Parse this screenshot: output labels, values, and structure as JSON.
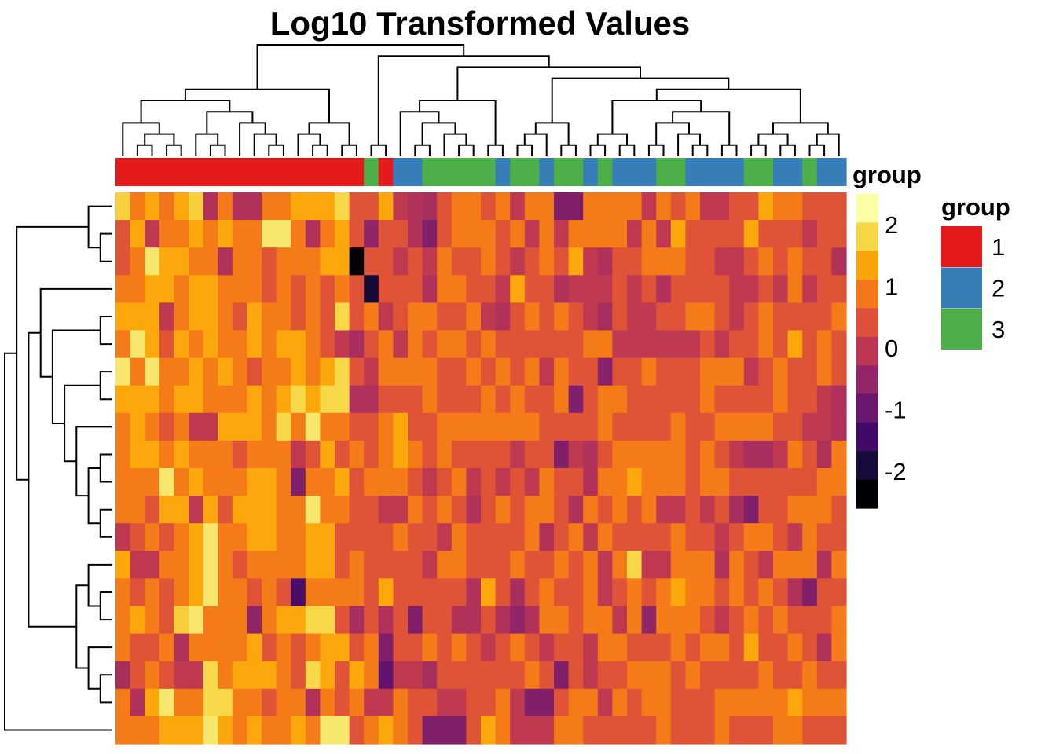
{
  "chart_data": {
    "type": "heatmap",
    "title": "Log10 Transformed Values",
    "n_rows": 20,
    "n_cols": 50,
    "column_groups": [
      1,
      1,
      1,
      1,
      1,
      1,
      1,
      1,
      1,
      1,
      1,
      1,
      1,
      1,
      1,
      1,
      1,
      3,
      1,
      2,
      2,
      3,
      3,
      3,
      3,
      3,
      2,
      3,
      3,
      2,
      3,
      3,
      2,
      3,
      2,
      2,
      2,
      3,
      3,
      2,
      2,
      2,
      2,
      3,
      3,
      2,
      2,
      3,
      2,
      2
    ],
    "annotation": {
      "name": "group",
      "levels": [
        {
          "label": "1",
          "color": "#E41A1C"
        },
        {
          "label": "2",
          "color": "#377EB8"
        },
        {
          "label": "3",
          "color": "#4DAF4A"
        }
      ]
    },
    "colorbar": {
      "name": "group",
      "ticks": [
        "2",
        "1",
        "0",
        "-1",
        "-2"
      ],
      "tick_values": [
        2,
        1,
        0,
        -1,
        -2
      ],
      "min": -2.6,
      "max": 2.5,
      "palette": [
        "#000004",
        "#160B39",
        "#420A68",
        "#6A176E",
        "#932667",
        "#BC3754",
        "#DD513A",
        "#F37819",
        "#FCA50A",
        "#F6D746",
        "#FCFFA4"
      ]
    },
    "values": [
      [
        1.9,
        1.0,
        1.5,
        0.9,
        1.5,
        1.9,
        -0.2,
        1.0,
        -0.2,
        -0.2,
        1.0,
        1.0,
        1.5,
        1.5,
        1.5,
        2.0,
        0.5,
        0.5,
        1.5,
        0.0,
        -0.2,
        -0.3,
        0.5,
        1.0,
        1.0,
        0.5,
        1.0,
        0.0,
        1.0,
        1.0,
        -0.8,
        -0.8,
        1.0,
        1.0,
        1.0,
        1.0,
        0.0,
        1.0,
        0.5,
        1.0,
        0.0,
        0.0,
        0.5,
        0.5,
        1.5,
        1.0,
        1.0,
        0.5,
        0.5,
        0.5
      ],
      [
        0.5,
        1.5,
        0.0,
        1.0,
        1.0,
        1.5,
        1.0,
        1.5,
        1.0,
        1.0,
        2.2,
        2.2,
        1.0,
        -0.2,
        1.0,
        1.5,
        0.5,
        -0.6,
        0.5,
        0.5,
        -0.2,
        -0.8,
        0.5,
        1.0,
        1.0,
        1.0,
        0.5,
        1.0,
        0.0,
        1.0,
        0.0,
        1.0,
        1.0,
        1.0,
        1.0,
        0.0,
        1.0,
        0.0,
        1.5,
        0.5,
        0.5,
        0.5,
        0.5,
        1.5,
        0.5,
        0.5,
        0.5,
        0.0,
        0.5,
        0.5
      ],
      [
        0.5,
        1.0,
        2.2,
        1.5,
        1.5,
        1.0,
        1.0,
        -0.2,
        1.0,
        1.0,
        0.5,
        1.0,
        1.0,
        1.0,
        1.5,
        1.5,
        -2.6,
        0.5,
        0.5,
        0.0,
        0.5,
        0.0,
        1.0,
        0.5,
        0.5,
        1.0,
        0.5,
        0.0,
        0.5,
        1.0,
        0.5,
        1.5,
        0.0,
        -0.2,
        0.5,
        0.5,
        1.0,
        1.0,
        1.0,
        0.5,
        0.5,
        0.0,
        0.0,
        0.5,
        1.0,
        0.5,
        1.0,
        0.5,
        0.5,
        -0.2
      ],
      [
        1.0,
        1.0,
        1.5,
        1.5,
        1.0,
        1.5,
        1.5,
        1.0,
        1.0,
        1.0,
        0.5,
        1.0,
        0.5,
        1.0,
        0.5,
        1.0,
        0.5,
        -2.1,
        0.5,
        0.5,
        0.5,
        -0.2,
        1.0,
        1.0,
        0.5,
        0.5,
        0.0,
        1.5,
        0.5,
        0.5,
        -0.2,
        0.0,
        0.0,
        0.0,
        0.5,
        0.0,
        0.5,
        -0.2,
        0.5,
        0.5,
        0.5,
        0.5,
        0.0,
        0.0,
        0.5,
        0.0,
        1.0,
        0.0,
        0.5,
        0.5
      ],
      [
        1.5,
        1.5,
        1.5,
        0.0,
        1.0,
        1.5,
        1.5,
        1.0,
        0.5,
        1.5,
        1.0,
        1.0,
        0.5,
        1.0,
        0.5,
        2.0,
        0.5,
        1.0,
        0.0,
        0.5,
        1.0,
        1.0,
        0.5,
        0.5,
        1.0,
        0.0,
        -0.2,
        0.5,
        1.0,
        0.5,
        1.0,
        0.5,
        0.0,
        -0.3,
        0.5,
        0.0,
        0.0,
        0.5,
        0.5,
        1.0,
        1.0,
        0.5,
        0.0,
        0.5,
        1.0,
        0.5,
        0.5,
        0.5,
        0.5,
        1.0
      ],
      [
        1.0,
        2.2,
        1.5,
        0.5,
        1.5,
        1.0,
        1.5,
        1.0,
        1.0,
        1.5,
        1.0,
        1.5,
        1.5,
        1.0,
        0.5,
        0.0,
        -0.3,
        0.5,
        1.0,
        0.0,
        1.0,
        0.5,
        1.0,
        1.0,
        0.5,
        1.0,
        0.5,
        0.5,
        0.5,
        0.5,
        0.5,
        0.5,
        1.0,
        1.0,
        0.0,
        0.0,
        0.0,
        0.0,
        0.0,
        0.0,
        0.5,
        0.0,
        0.5,
        0.5,
        1.0,
        0.5,
        1.5,
        0.5,
        1.0,
        0.5
      ],
      [
        2.2,
        1.0,
        2.2,
        1.0,
        1.0,
        1.5,
        1.0,
        1.5,
        1.0,
        0.5,
        1.0,
        1.0,
        1.5,
        1.0,
        1.5,
        2.0,
        0.5,
        0.0,
        1.0,
        1.0,
        1.0,
        1.0,
        0.5,
        0.5,
        1.0,
        0.5,
        1.0,
        0.5,
        1.0,
        0.0,
        1.0,
        0.5,
        0.5,
        -0.7,
        0.5,
        0.5,
        1.0,
        0.5,
        0.5,
        0.5,
        1.0,
        1.0,
        1.0,
        0.0,
        0.5,
        1.0,
        0.5,
        0.5,
        1.0,
        0.5
      ],
      [
        1.5,
        1.5,
        1.5,
        1.0,
        1.5,
        1.5,
        1.0,
        1.0,
        1.0,
        1.5,
        1.0,
        1.5,
        2.0,
        1.5,
        2.0,
        2.0,
        -0.2,
        -0.2,
        0.5,
        0.5,
        0.5,
        1.0,
        0.5,
        0.5,
        0.5,
        1.0,
        0.5,
        1.0,
        0.5,
        0.5,
        1.0,
        -0.8,
        0.5,
        1.0,
        1.0,
        0.5,
        0.5,
        0.5,
        0.5,
        0.5,
        1.0,
        0.5,
        0.5,
        0.5,
        0.5,
        1.0,
        0.5,
        0.5,
        0.0,
        -0.2
      ],
      [
        1.0,
        1.5,
        1.0,
        0.5,
        1.0,
        0.0,
        0.0,
        1.5,
        1.5,
        1.5,
        1.0,
        2.0,
        1.0,
        2.2,
        1.0,
        1.0,
        0.5,
        0.5,
        1.0,
        1.5,
        0.5,
        0.5,
        1.0,
        1.0,
        1.0,
        1.0,
        1.0,
        1.0,
        1.0,
        0.5,
        0.5,
        0.5,
        0.5,
        1.0,
        0.5,
        0.5,
        0.5,
        0.5,
        1.0,
        0.5,
        0.5,
        1.0,
        1.0,
        1.0,
        1.0,
        0.5,
        0.5,
        0.0,
        0.0,
        -0.2
      ],
      [
        1.0,
        1.5,
        1.5,
        1.0,
        1.5,
        1.0,
        1.0,
        1.0,
        0.5,
        1.0,
        1.0,
        1.0,
        0.0,
        0.5,
        1.5,
        0.5,
        1.0,
        0.5,
        1.0,
        1.5,
        1.0,
        0.5,
        1.0,
        0.5,
        0.5,
        0.5,
        0.5,
        0.0,
        0.5,
        0.5,
        -0.8,
        0.0,
        -0.2,
        0.5,
        1.0,
        1.0,
        1.0,
        1.0,
        1.0,
        0.5,
        1.0,
        0.5,
        0.0,
        -0.3,
        -0.3,
        0.0,
        1.0,
        0.5,
        -0.2,
        1.0
      ],
      [
        1.0,
        1.0,
        1.0,
        2.2,
        1.0,
        1.5,
        1.0,
        1.0,
        1.0,
        1.5,
        1.5,
        1.0,
        -0.8,
        1.0,
        1.0,
        1.5,
        0.5,
        1.0,
        1.0,
        1.0,
        0.5,
        0.0,
        0.5,
        1.0,
        0.0,
        0.5,
        0.0,
        0.5,
        0.0,
        1.0,
        0.5,
        0.5,
        -0.2,
        1.0,
        1.0,
        1.5,
        1.0,
        1.0,
        1.0,
        0.5,
        1.0,
        1.0,
        0.5,
        0.5,
        0.5,
        0.5,
        0.5,
        0.5,
        1.0,
        1.0
      ],
      [
        1.0,
        1.0,
        0.5,
        1.5,
        1.5,
        0.0,
        1.5,
        0.5,
        1.5,
        1.5,
        1.5,
        1.0,
        1.0,
        2.2,
        1.0,
        1.0,
        0.5,
        0.5,
        0.0,
        0.0,
        1.0,
        0.5,
        1.0,
        0.5,
        -0.2,
        0.5,
        1.0,
        0.5,
        1.0,
        1.0,
        0.5,
        -0.2,
        1.0,
        0.5,
        1.0,
        0.5,
        1.0,
        0.0,
        0.0,
        0.5,
        0.0,
        0.5,
        -0.3,
        -0.8,
        0.5,
        0.5,
        1.0,
        1.0,
        1.0,
        0.5
      ],
      [
        0.0,
        0.5,
        1.0,
        0.5,
        1.0,
        1.5,
        2.2,
        1.0,
        1.0,
        1.5,
        1.5,
        1.0,
        1.0,
        1.5,
        1.5,
        0.5,
        0.5,
        0.5,
        0.5,
        1.0,
        0.5,
        0.5,
        0.0,
        1.0,
        0.5,
        0.5,
        0.5,
        0.5,
        1.0,
        -0.2,
        0.5,
        1.0,
        0.0,
        1.0,
        0.5,
        0.5,
        0.5,
        0.5,
        1.0,
        0.5,
        0.5,
        0.0,
        0.5,
        1.0,
        1.0,
        0.5,
        0.0,
        1.0,
        0.5,
        0.5
      ],
      [
        1.5,
        0.0,
        0.0,
        1.0,
        1.0,
        1.5,
        2.2,
        1.0,
        0.5,
        1.0,
        1.0,
        1.0,
        1.0,
        1.5,
        1.5,
        0.5,
        1.0,
        0.5,
        0.5,
        0.5,
        0.5,
        0.0,
        1.0,
        1.0,
        0.5,
        0.5,
        0.5,
        1.0,
        0.5,
        0.5,
        1.0,
        0.5,
        1.0,
        0.0,
        1.0,
        2.0,
        0.0,
        0.0,
        1.0,
        1.0,
        1.0,
        -0.2,
        1.0,
        0.5,
        0.0,
        1.0,
        1.0,
        1.0,
        -0.2,
        1.0
      ],
      [
        1.0,
        0.5,
        1.0,
        0.5,
        1.0,
        1.5,
        2.2,
        1.0,
        1.0,
        0.5,
        1.0,
        0.5,
        -1.5,
        1.0,
        1.0,
        1.0,
        1.0,
        0.5,
        1.5,
        0.5,
        0.5,
        0.5,
        0.5,
        0.5,
        -0.2,
        1.5,
        0.5,
        -0.3,
        0.5,
        1.0,
        0.5,
        0.5,
        1.0,
        0.0,
        0.5,
        1.0,
        0.5,
        1.0,
        1.5,
        1.0,
        1.0,
        0.5,
        1.0,
        0.5,
        1.0,
        0.5,
        -0.2,
        -0.8,
        0.5,
        0.5
      ],
      [
        1.0,
        1.5,
        1.0,
        0.5,
        1.9,
        2.2,
        1.0,
        1.0,
        1.0,
        -0.6,
        1.0,
        1.5,
        1.5,
        2.0,
        2.0,
        0.5,
        -0.3,
        0.5,
        -0.2,
        0.5,
        -0.8,
        0.5,
        0.5,
        -0.2,
        -0.2,
        0.5,
        -0.2,
        -0.6,
        -0.2,
        1.0,
        1.0,
        0.5,
        1.0,
        1.0,
        0.0,
        1.0,
        -0.6,
        1.0,
        1.0,
        1.0,
        0.5,
        0.0,
        0.5,
        1.0,
        0.5,
        1.0,
        0.5,
        0.5,
        0.5,
        1.0
      ],
      [
        1.0,
        0.5,
        0.5,
        1.0,
        -0.2,
        1.0,
        1.0,
        1.0,
        1.0,
        1.5,
        0.5,
        1.0,
        0.5,
        1.0,
        1.5,
        1.5,
        0.5,
        1.0,
        -0.8,
        0.5,
        0.5,
        1.0,
        0.5,
        1.0,
        0.5,
        0.0,
        0.5,
        1.0,
        0.5,
        0.0,
        0.5,
        0.5,
        0.0,
        1.0,
        1.0,
        0.5,
        0.5,
        0.5,
        1.0,
        0.5,
        1.0,
        1.0,
        0.5,
        1.5,
        0.5,
        0.5,
        1.0,
        0.5,
        -0.2,
        1.0
      ],
      [
        -0.3,
        0.5,
        1.0,
        0.5,
        0.0,
        0.0,
        2.0,
        1.0,
        1.5,
        1.5,
        1.5,
        1.0,
        0.5,
        2.0,
        1.5,
        0.5,
        1.5,
        1.0,
        -1.2,
        0.0,
        0.0,
        -0.3,
        0.5,
        0.5,
        0.5,
        0.5,
        0.5,
        0.5,
        1.0,
        0.5,
        -0.8,
        0.5,
        0.0,
        0.5,
        0.5,
        1.0,
        1.0,
        1.0,
        0.5,
        1.0,
        0.5,
        0.5,
        0.5,
        0.5,
        1.0,
        0.5,
        0.5,
        1.0,
        0.5,
        0.5
      ],
      [
        1.0,
        -0.2,
        1.5,
        2.2,
        1.0,
        1.0,
        2.0,
        2.0,
        1.0,
        1.0,
        0.5,
        1.0,
        1.0,
        -0.2,
        1.0,
        0.5,
        1.0,
        0.0,
        0.0,
        1.0,
        0.5,
        0.5,
        0.0,
        0.0,
        0.5,
        0.5,
        1.0,
        0.0,
        -0.8,
        -0.8,
        0.5,
        1.0,
        1.0,
        0.0,
        1.0,
        0.5,
        1.0,
        1.0,
        0.5,
        0.5,
        0.5,
        1.0,
        1.0,
        1.0,
        1.0,
        1.0,
        1.5,
        1.0,
        1.0,
        1.0
      ],
      [
        1.0,
        1.0,
        1.0,
        1.5,
        1.5,
        1.5,
        2.2,
        1.5,
        1.0,
        1.5,
        1.0,
        1.0,
        1.5,
        1.0,
        2.2,
        2.2,
        0.5,
        1.0,
        1.5,
        1.0,
        0.5,
        -0.8,
        -0.8,
        -0.8,
        0.5,
        1.5,
        1.0,
        0.0,
        0.0,
        0.0,
        1.0,
        1.0,
        0.5,
        0.5,
        0.5,
        0.5,
        0.5,
        1.0,
        0.5,
        0.5,
        0.5,
        1.0,
        0.5,
        0.5,
        0.5,
        1.0,
        1.0,
        0.5,
        0.5,
        0.5
      ]
    ]
  }
}
